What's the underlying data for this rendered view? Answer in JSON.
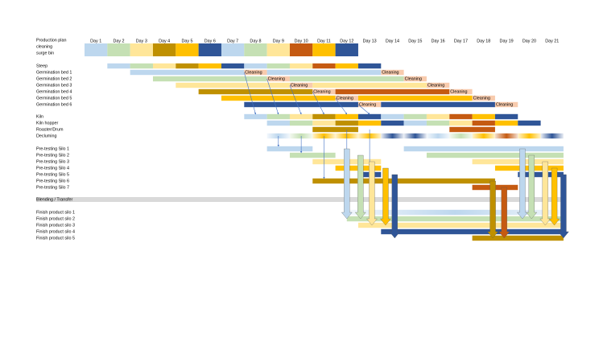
{
  "days": [
    "Day 1",
    "Day 2",
    "Day 3",
    "Day 4",
    "Day 5",
    "Day 6",
    "Day 7",
    "Day 8",
    "Day 9",
    "Day 10",
    "Day 11",
    "Day 12",
    "Day 13",
    "Day 14",
    "Day 15",
    "Day 16",
    "Day 17",
    "Day 18",
    "Day 19",
    "Day 20",
    "Day 21"
  ],
  "row_labels": [
    "Production plan",
    "cleaning",
    "surge bin",
    "Steep",
    "Germination bed 1",
    "Germination bed 2",
    "Germination bed 3",
    "Germination bed 4",
    "Germination bed 5",
    "Germination bed 6",
    "Kiln",
    "Kiln hopper",
    "Roaster/Drum",
    "Decluming",
    "Pre-testing Silo 1",
    "Pre-testing Silo 2",
    "Pre-testing Silo 3",
    "Pre-testing Silo 4",
    "Pre-testing Silo 5",
    "Pre-testing Silo 6",
    "Pre-testing Silo 7",
    "Blending / Transfer",
    "Finish product silo 1",
    "Finish product silo 2",
    "Finish product silo 3",
    "Finish product silo 4",
    "Finish product silo 5"
  ],
  "cleaning_labels": [
    "Cleaning",
    "Cleaning",
    "Cleaning",
    "Cleaning",
    "Cleaning",
    "Cleaning",
    "Cleaning",
    "Cleaning",
    "Cleaning",
    "Cleaning",
    "Cleaning",
    "Cleaning"
  ]
}
